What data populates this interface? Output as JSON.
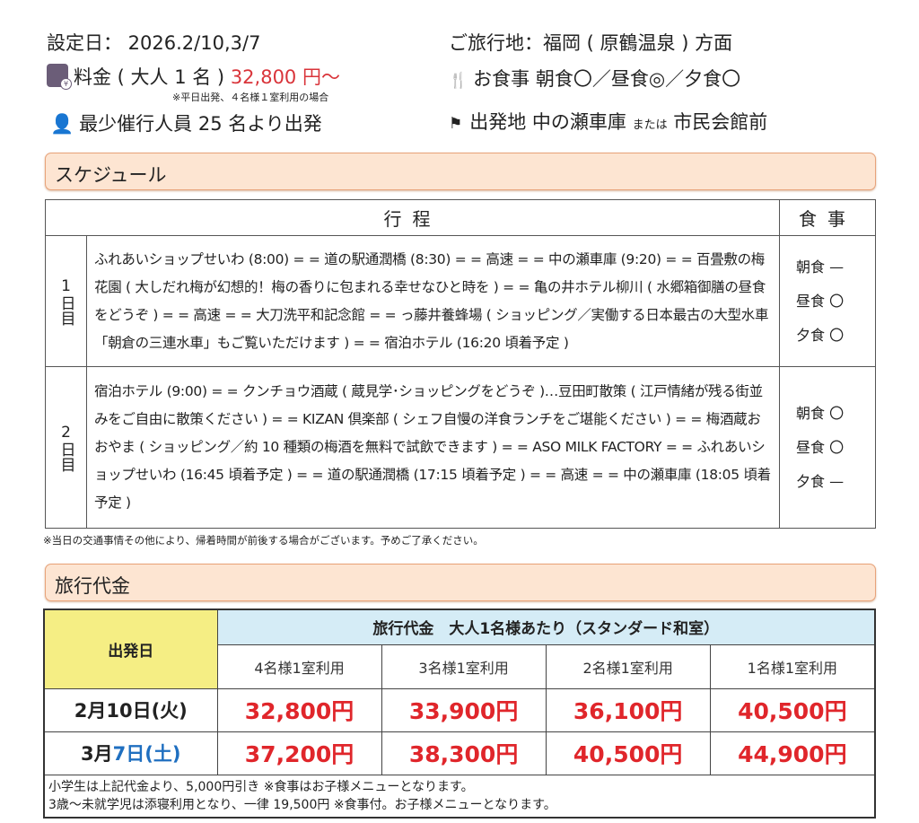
{
  "header": {
    "setting_date": "設定日： 2026.2/10,3/7",
    "price_label": "料金 ( 大人 1 名 ) ",
    "price_value": "32,800 円～",
    "price_note": "※平日出発、４名様１室利用の場合",
    "min_people": "最少催行人員  25 名より出発",
    "destination": "ご旅行地：福岡 ( 原鶴温泉 ) 方面",
    "meals": "お食事  朝食〇／昼食◎／夕食〇",
    "departure_label": "出発地  中の瀬車庫 ",
    "departure_or": "または",
    "departure_alt": " 市民会館前"
  },
  "schedule": {
    "section_title": "スケジュール",
    "col_itinerary": "行程",
    "col_meals": "食事",
    "days": [
      {
        "label": "1日目",
        "itinerary": "ふれあいショップせいわ (8:00) = =  道の駅通潤橋 (8:30) = =  高速 = =  中の瀬車庫 (9:20) = =  百畳敷の梅花園 ( 大しだれ梅が幻想的！梅の香りに包まれる幸せなひと時を ) = =  亀の井ホテル柳川 ( 水郷箱御膳の昼食をどうぞ ) = =  高速  = =  大刀洗平和記念館  = =  っ藤井養蜂場 ( ショッピング／実働する日本最古の大型水車「朝倉の三連水車」もご覧いただけます ) = =  宿泊ホテル (16:20 頃着予定 )",
        "meals": [
          "朝食 —",
          "昼食 〇",
          "夕食 〇"
        ]
      },
      {
        "label": "2日目",
        "itinerary": "宿泊ホテル (9:00) = =  クンチョウ酒蔵 ( 蔵見学･ショッピングをどうぞ )…豆田町散策 ( 江戸情緒が残る街並みをご自由に散策ください ) = =  KIZAN 倶楽部 ( シェフ自慢の洋食ランチをご堪能ください ) = =  梅酒蔵おおやま ( ショッピング／約 10 種類の梅酒を無料で試飲できます ) = =  ASO MILK FACTORY  = =  ふれあいショップせいわ (16:45 頃着予定 ) = =  道の駅通潤橋 (17:15 頃着予定 ) = =  高速  = =  中の瀬車庫 (18:05 頃着予定 )",
        "meals": [
          "朝食 〇",
          "昼食 〇",
          "夕食 —"
        ]
      }
    ],
    "note": "※当日の交通事情その他により、帰着時間が前後する場合がございます。予めご了承ください。"
  },
  "pricing": {
    "section_title": "旅行代金",
    "col_date": "出発日",
    "header": "旅行代金　大人1名様あたり（スタンダード和室）",
    "room_types": [
      "4名様1室利用",
      "3名様1室利用",
      "2名様1室利用",
      "1名様1室利用"
    ],
    "rows": [
      {
        "date_a": "2月10日(火)",
        "date_b": "",
        "prices": [
          "32,800円",
          "33,900円",
          "36,100円",
          "40,500円"
        ]
      },
      {
        "date_a": "3月",
        "date_b": "7日(土)",
        "prices": [
          "37,200円",
          "38,300円",
          "40,500円",
          "44,900円"
        ]
      }
    ],
    "notes": [
      "小学生は上記代金より、5,000円引き ※食事はお子様メニューとなります。",
      "3歳～未就学児は添寝利用となり、一律 19,500円 ※食事付。お子様メニューとなります。"
    ]
  },
  "colors": {
    "accent_red": "#d9343a",
    "price_red": "#e0262b",
    "section_bg": "#fde5d2",
    "date_col_bg": "#f5ee84",
    "header_bg": "#d5ecf6",
    "saturday_blue": "#1f6fc0"
  },
  "icons": [
    "suitcase-yen-icon",
    "fork-knife-icon",
    "person-icon",
    "flag-icon"
  ]
}
